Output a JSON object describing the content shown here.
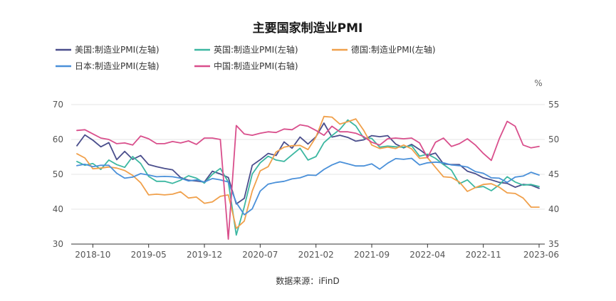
{
  "chart_data": {
    "type": "line",
    "title": "主要国家制造业PMI",
    "source": "数据来源：iFinD",
    "right_unit": "%",
    "x_tick_labels": [
      "2018-10",
      "2019-05",
      "2019-12",
      "2020-07",
      "2021-02",
      "2021-09",
      "2022-04",
      "2022-11",
      "2023-06"
    ],
    "x_tick_indices": [
      2,
      9,
      16,
      23,
      30,
      37,
      44,
      51,
      58
    ],
    "y_left": {
      "min": 30,
      "max": 70,
      "ticks": [
        "30",
        "40",
        "50",
        "60",
        "70"
      ]
    },
    "y_right": {
      "min": 35,
      "max": 55,
      "ticks": [
        "35",
        "40",
        "45",
        "50",
        "55"
      ]
    },
    "grid": true,
    "legend_position": "top-left",
    "x_start": "2018-08",
    "x_end": "2023-06",
    "series": [
      {
        "name": "美国:制造业PMI(左轴)",
        "axis": "left",
        "color": "#4a4e8c",
        "values": [
          58.2,
          61.3,
          59.8,
          57.9,
          59.1,
          54.2,
          56.6,
          54.3,
          55.4,
          52.8,
          52.2,
          51.7,
          51.3,
          49.1,
          48.3,
          48.1,
          47.8,
          50.9,
          50.1,
          49.1,
          41.5,
          43.1,
          52.6,
          54.2,
          56.0,
          55.4,
          59.3,
          57.5,
          60.7,
          58.7,
          60.8,
          64.7,
          60.7,
          61.2,
          60.6,
          59.5,
          59.9,
          61.1,
          60.8,
          61.1,
          58.7,
          57.6,
          58.6,
          57.1,
          55.4,
          56.1,
          53.0,
          52.8,
          52.8,
          50.9,
          50.2,
          49.0,
          48.4,
          47.7,
          47.4,
          46.3,
          47.1,
          46.9,
          46.0
        ]
      },
      {
        "name": "英国:制造业PMI(左轴)",
        "axis": "left",
        "color": "#3cb7a1",
        "values": [
          53.7,
          52.6,
          53.1,
          51.4,
          54.1,
          52.8,
          52.0,
          55.1,
          53.1,
          49.4,
          48.0,
          48.0,
          47.4,
          48.3,
          49.6,
          48.9,
          47.5,
          50.0,
          51.7,
          47.8,
          32.6,
          40.7,
          50.1,
          53.3,
          55.2,
          54.1,
          53.7,
          55.6,
          57.5,
          54.1,
          55.1,
          59.1,
          61.1,
          62.9,
          65.6,
          63.9,
          60.4,
          60.3,
          57.8,
          58.1,
          57.9,
          57.8,
          58.2,
          55.2,
          55.8,
          54.6,
          52.8,
          51.2,
          47.3,
          48.4,
          46.2,
          46.5,
          45.3,
          47.0,
          49.3,
          47.8,
          46.9,
          47.1,
          46.5
        ]
      },
      {
        "name": "德国:制造业PMI(左轴)",
        "axis": "left",
        "color": "#f0a04b",
        "values": [
          55.9,
          54.7,
          51.6,
          51.8,
          52.1,
          51.8,
          51.1,
          49.7,
          47.6,
          44.1,
          44.3,
          44.1,
          44.3,
          45.0,
          43.2,
          43.5,
          41.7,
          42.1,
          43.7,
          44.1,
          34.5,
          36.6,
          45.2,
          51.0,
          52.2,
          56.4,
          57.8,
          58.2,
          58.3,
          57.1,
          60.7,
          66.6,
          66.4,
          64.4,
          65.1,
          65.9,
          62.6,
          58.4,
          57.4,
          57.8,
          57.4,
          58.4,
          57.3,
          54.6,
          54.8,
          52.0,
          49.3,
          49.1,
          47.8,
          45.1,
          46.2,
          47.1,
          47.3,
          46.3,
          44.7,
          44.5,
          43.2,
          40.6,
          40.6
        ]
      },
      {
        "name": "日本:制造业PMI(左轴)",
        "axis": "left",
        "color": "#4a90d9",
        "values": [
          52.5,
          52.9,
          52.2,
          52.6,
          52.6,
          50.3,
          48.9,
          49.2,
          50.2,
          49.8,
          49.3,
          49.4,
          49.3,
          48.9,
          48.1,
          48.4,
          47.8,
          48.8,
          48.4,
          47.8,
          41.9,
          38.4,
          40.1,
          45.2,
          47.2,
          47.7,
          48.0,
          48.7,
          49.0,
          49.8,
          49.7,
          51.4,
          52.7,
          53.6,
          53.0,
          52.4,
          52.4,
          53.0,
          51.5,
          53.2,
          54.5,
          54.3,
          54.6,
          52.7,
          53.3,
          53.5,
          53.3,
          52.7,
          52.5,
          52.1,
          50.8,
          50.3,
          49.0,
          48.9,
          47.7,
          49.2,
          49.5,
          50.6,
          49.8
        ]
      },
      {
        "name": "中国:制造业PMI(右轴)",
        "axis": "right",
        "color": "#d94f8c",
        "values": [
          51.3,
          51.4,
          50.8,
          50.2,
          50.0,
          49.4,
          49.5,
          49.2,
          50.5,
          50.1,
          49.4,
          49.4,
          49.7,
          49.5,
          49.8,
          49.3,
          50.2,
          50.2,
          50.0,
          35.7,
          52.0,
          50.8,
          50.6,
          50.9,
          51.1,
          51.0,
          51.5,
          51.4,
          52.1,
          51.9,
          51.3,
          50.6,
          51.9,
          51.1,
          51.1,
          50.9,
          50.4,
          49.6,
          49.2,
          50.1,
          50.2,
          50.1,
          50.2,
          49.5,
          47.4,
          49.6,
          50.2,
          49.0,
          49.4,
          50.1,
          49.2,
          48.0,
          47.0,
          50.1,
          52.6,
          51.9,
          49.2,
          48.8,
          49.0
        ]
      }
    ]
  }
}
